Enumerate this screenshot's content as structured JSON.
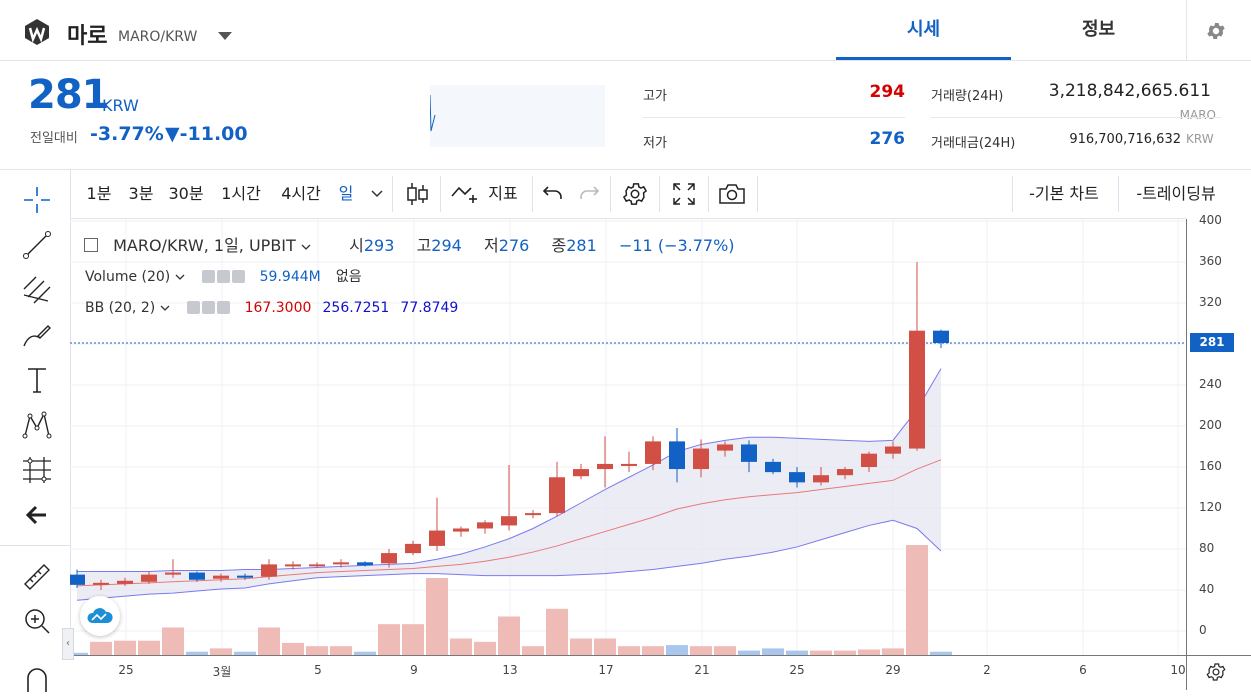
{
  "header": {
    "coin_name": "마로",
    "pair": "MARO/KRW",
    "tabs": [
      "시세",
      "정보"
    ]
  },
  "summary": {
    "price": "281",
    "price_unit": "KRW",
    "prev_label": "전일대비",
    "change_pct": "-3.77%",
    "change_val": "▼-11.00",
    "high_label": "고가",
    "high_val": "294",
    "low_label": "저가",
    "low_val": "276",
    "volume_label": "거래량(24H)",
    "volume_val": "3,218,842,665.611",
    "volume_unit": "MARO",
    "amount_label": "거래대금(24H)",
    "amount_val": "916,700,716,632",
    "amount_unit": "KRW"
  },
  "toolbar": {
    "intervals": [
      "1분",
      "3분",
      "30분",
      "1시간",
      "4시간",
      "일"
    ],
    "indicator_label": "지표",
    "basic_chart": "-기본 차트",
    "trading_view": "-트레이딩뷰"
  },
  "legend": {
    "symbol": "MARO/KRW, 1일, UPBIT",
    "open_label": "시",
    "open": "293",
    "high_label": "고",
    "high": "294",
    "low_label": "저",
    "low": "276",
    "close_label": "종",
    "close": "281",
    "change": "−11 (−3.77%)",
    "volume_name": "Volume (20)",
    "volume_value": "59.944M",
    "volume_ma": "없음",
    "bb_name": "BB (20, 2)",
    "bb_mid": "167.3000",
    "bb_upper": "256.7251",
    "bb_lower": "77.8749"
  },
  "colors": {
    "up": "#d24f45",
    "down": "#1261c4",
    "accent": "#1261c4",
    "bb_band": "#e6e6f2",
    "bb_line": "#7a7aee",
    "ma_line": "#e87a7a"
  },
  "chart_data": {
    "type": "candlestick",
    "y_ticks": [
      0,
      40,
      80,
      120,
      160,
      200,
      240,
      280,
      320,
      360,
      400
    ],
    "x_ticks": [
      "25",
      "3월",
      "5",
      "9",
      "13",
      "17",
      "21",
      "25",
      "29",
      "2",
      "6",
      "10"
    ],
    "last_price_label": "281",
    "candles": [
      {
        "o": 55,
        "h": 60,
        "l": 42,
        "c": 45
      },
      {
        "o": 45,
        "h": 50,
        "l": 40,
        "c": 47
      },
      {
        "o": 46,
        "h": 52,
        "l": 44,
        "c": 49
      },
      {
        "o": 48,
        "h": 58,
        "l": 46,
        "c": 55
      },
      {
        "o": 55,
        "h": 70,
        "l": 52,
        "c": 57
      },
      {
        "o": 57,
        "h": 58,
        "l": 48,
        "c": 50
      },
      {
        "o": 51,
        "h": 56,
        "l": 48,
        "c": 54
      },
      {
        "o": 54,
        "h": 56,
        "l": 50,
        "c": 52
      },
      {
        "o": 53,
        "h": 70,
        "l": 50,
        "c": 65
      },
      {
        "o": 63,
        "h": 68,
        "l": 60,
        "c": 65
      },
      {
        "o": 64,
        "h": 67,
        "l": 62,
        "c": 65
      },
      {
        "o": 65,
        "h": 70,
        "l": 62,
        "c": 67
      },
      {
        "o": 67,
        "h": 68,
        "l": 63,
        "c": 64
      },
      {
        "o": 66,
        "h": 80,
        "l": 62,
        "c": 76
      },
      {
        "o": 76,
        "h": 88,
        "l": 74,
        "c": 85
      },
      {
        "o": 83,
        "h": 130,
        "l": 78,
        "c": 98
      },
      {
        "o": 97,
        "h": 102,
        "l": 92,
        "c": 100
      },
      {
        "o": 100,
        "h": 108,
        "l": 95,
        "c": 106
      },
      {
        "o": 103,
        "h": 162,
        "l": 98,
        "c": 112
      },
      {
        "o": 114,
        "h": 118,
        "l": 110,
        "c": 115
      },
      {
        "o": 115,
        "h": 165,
        "l": 112,
        "c": 150
      },
      {
        "o": 151,
        "h": 163,
        "l": 148,
        "c": 158
      },
      {
        "o": 158,
        "h": 190,
        "l": 140,
        "c": 163
      },
      {
        "o": 161,
        "h": 175,
        "l": 155,
        "c": 163
      },
      {
        "o": 163,
        "h": 190,
        "l": 157,
        "c": 185
      },
      {
        "o": 185,
        "h": 198,
        "l": 145,
        "c": 158
      },
      {
        "o": 158,
        "h": 187,
        "l": 150,
        "c": 178
      },
      {
        "o": 176,
        "h": 185,
        "l": 170,
        "c": 182
      },
      {
        "o": 182,
        "h": 186,
        "l": 155,
        "c": 165
      },
      {
        "o": 165,
        "h": 168,
        "l": 153,
        "c": 155
      },
      {
        "o": 155,
        "h": 160,
        "l": 140,
        "c": 145
      },
      {
        "o": 145,
        "h": 160,
        "l": 142,
        "c": 152
      },
      {
        "o": 152,
        "h": 160,
        "l": 148,
        "c": 158
      },
      {
        "o": 160,
        "h": 175,
        "l": 155,
        "c": 173
      },
      {
        "o": 173,
        "h": 185,
        "l": 168,
        "c": 180
      },
      {
        "o": 178,
        "h": 360,
        "l": 176,
        "c": 293
      },
      {
        "o": 293,
        "h": 294,
        "l": 276,
        "c": 281
      }
    ],
    "volume": [
      2,
      12,
      13,
      13,
      25,
      3,
      6,
      3,
      25,
      11,
      8,
      8,
      3,
      28,
      28,
      70,
      15,
      12,
      35,
      8,
      42,
      15,
      15,
      8,
      8,
      9,
      8,
      8,
      4,
      6,
      4,
      4,
      4,
      5,
      6,
      100,
      3
    ],
    "bb_upper": [
      58,
      58,
      58,
      58,
      59,
      59,
      59,
      60,
      60,
      61,
      62,
      63,
      64,
      65,
      66,
      70,
      75,
      82,
      90,
      100,
      112,
      125,
      138,
      150,
      162,
      175,
      182,
      186,
      189,
      189,
      188,
      187,
      186,
      185,
      186,
      216,
      256
    ],
    "bb_mid": [
      44,
      45,
      46,
      47,
      48,
      49,
      50,
      51,
      53,
      55,
      57,
      58,
      59,
      60,
      61,
      63,
      65,
      68,
      72,
      77,
      83,
      90,
      97,
      104,
      111,
      119,
      124,
      128,
      131,
      133,
      135,
      138,
      141,
      144,
      147,
      158,
      167
    ],
    "bb_lower": [
      30,
      32,
      34,
      36,
      37,
      39,
      41,
      42,
      46,
      49,
      52,
      53,
      54,
      55,
      56,
      56,
      55,
      54,
      54,
      54,
      54,
      55,
      56,
      58,
      60,
      63,
      66,
      70,
      73,
      77,
      82,
      89,
      96,
      103,
      108,
      100,
      78
    ]
  }
}
